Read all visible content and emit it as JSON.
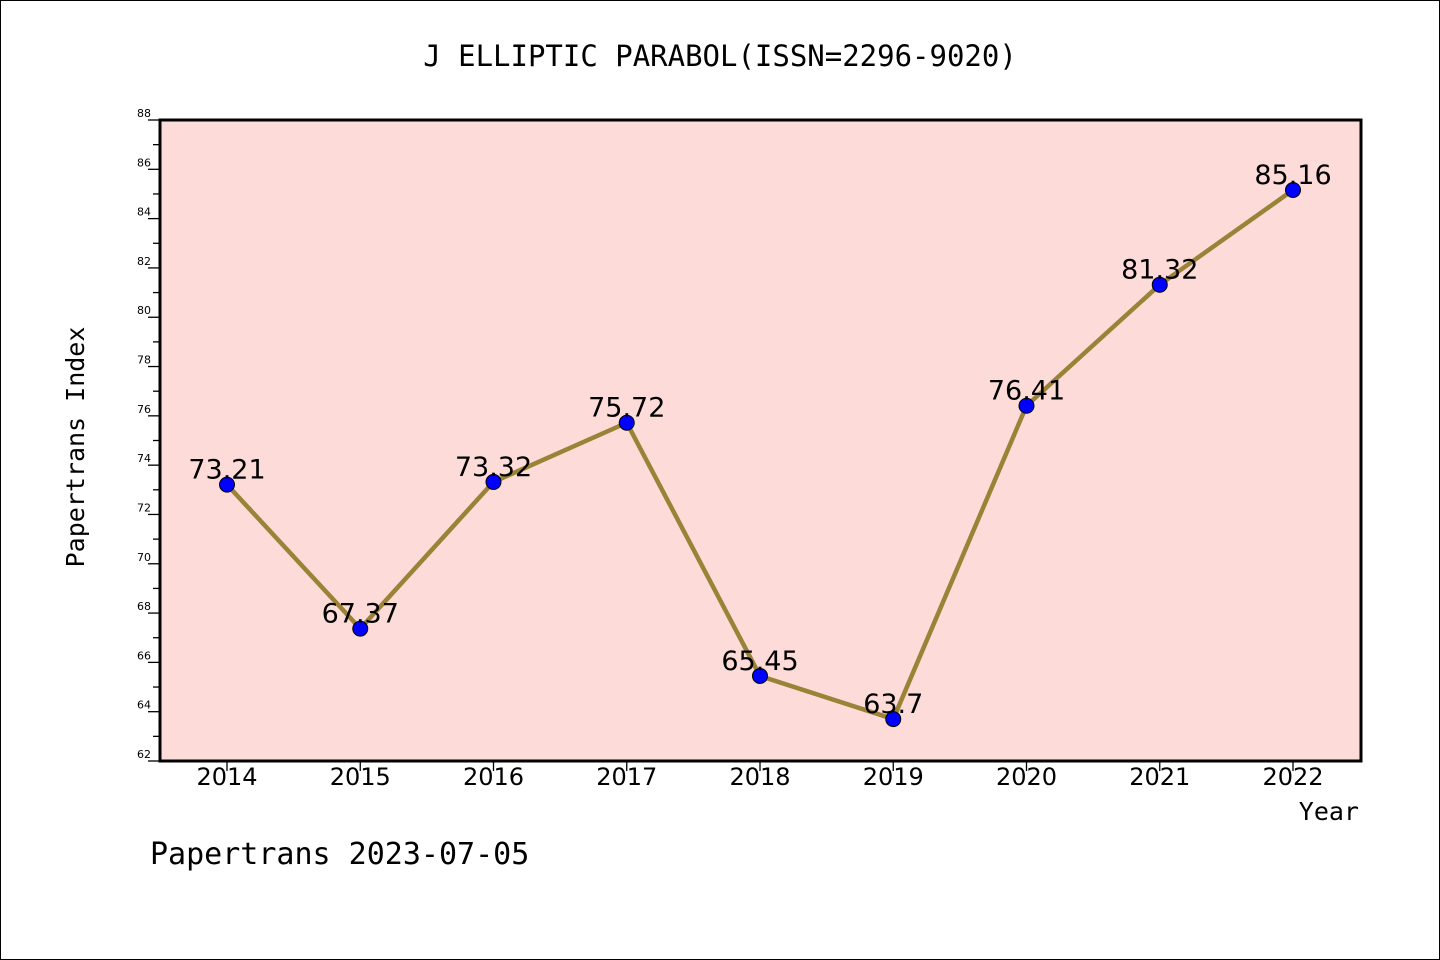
{
  "chart_data": {
    "type": "line",
    "title": "J ELLIPTIC PARABOL(ISSN=2296-9020)",
    "xlabel": "Year",
    "ylabel": "Papertrans Index",
    "footer": "Papertrans 2023-07-05",
    "x": [
      "2014",
      "2015",
      "2016",
      "2017",
      "2018",
      "2019",
      "2020",
      "2021",
      "2022"
    ],
    "series": [
      {
        "values": [
          73.21,
          67.37,
          73.32,
          75.72,
          65.45,
          63.7,
          76.41,
          81.32,
          85.16
        ]
      }
    ],
    "data_labels": [
      "73.21",
      "67.37",
      "73.32",
      "75.72",
      "65.45",
      "63.7",
      "76.41",
      "81.32",
      "85.16"
    ],
    "ylim": [
      62,
      88
    ],
    "yticks": [
      "62",
      "64",
      "66",
      "68",
      "70",
      "72",
      "74",
      "76",
      "78",
      "80",
      "82",
      "84",
      "86",
      "88"
    ],
    "colors": {
      "plot_background": "#fddbd9",
      "line": "#9a8236",
      "marker": "#0000ff",
      "axes": "#000000"
    },
    "grid": false,
    "legend": "none"
  }
}
